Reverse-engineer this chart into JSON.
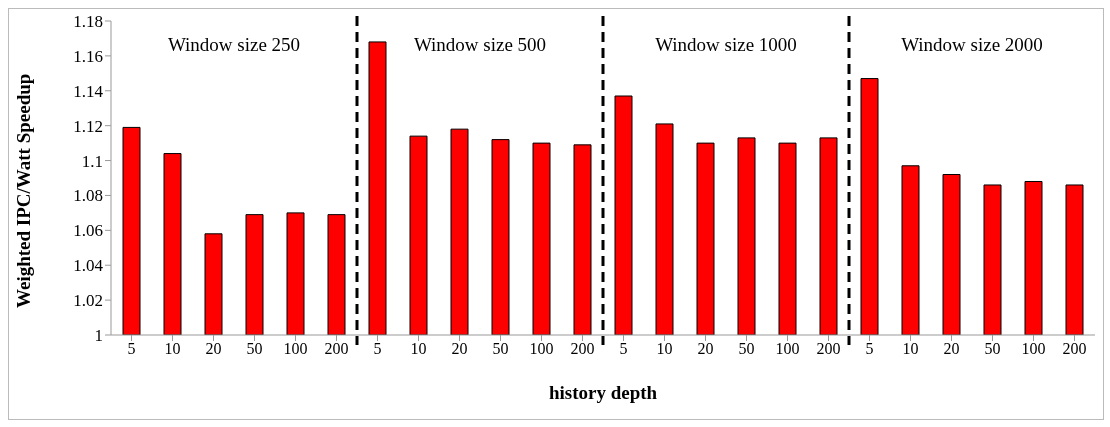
{
  "chart_data": {
    "type": "bar",
    "xlabel": "history depth",
    "ylabel": "Weighted IPC/Watt Speedup",
    "categories": [
      "5",
      "10",
      "20",
      "50",
      "100",
      "200",
      "5",
      "10",
      "20",
      "50",
      "100",
      "200",
      "5",
      "10",
      "20",
      "50",
      "100",
      "200",
      "5",
      "10",
      "20",
      "50",
      "100",
      "200"
    ],
    "values": [
      1.119,
      1.104,
      1.058,
      1.069,
      1.07,
      1.069,
      1.168,
      1.114,
      1.118,
      1.112,
      1.11,
      1.109,
      1.137,
      1.121,
      1.11,
      1.113,
      1.11,
      1.113,
      1.147,
      1.097,
      1.092,
      1.086,
      1.088,
      1.086
    ],
    "color": "#ff0000",
    "ylim": [
      1,
      1.18
    ],
    "yticks": [
      1,
      1.02,
      1.04,
      1.06,
      1.08,
      1.1,
      1.12,
      1.14,
      1.16,
      1.18
    ],
    "annotations": [
      "Window size 250",
      "Window size 500",
      "Window size 1000",
      "Window size 2000"
    ],
    "grid": false,
    "legend": false
  }
}
